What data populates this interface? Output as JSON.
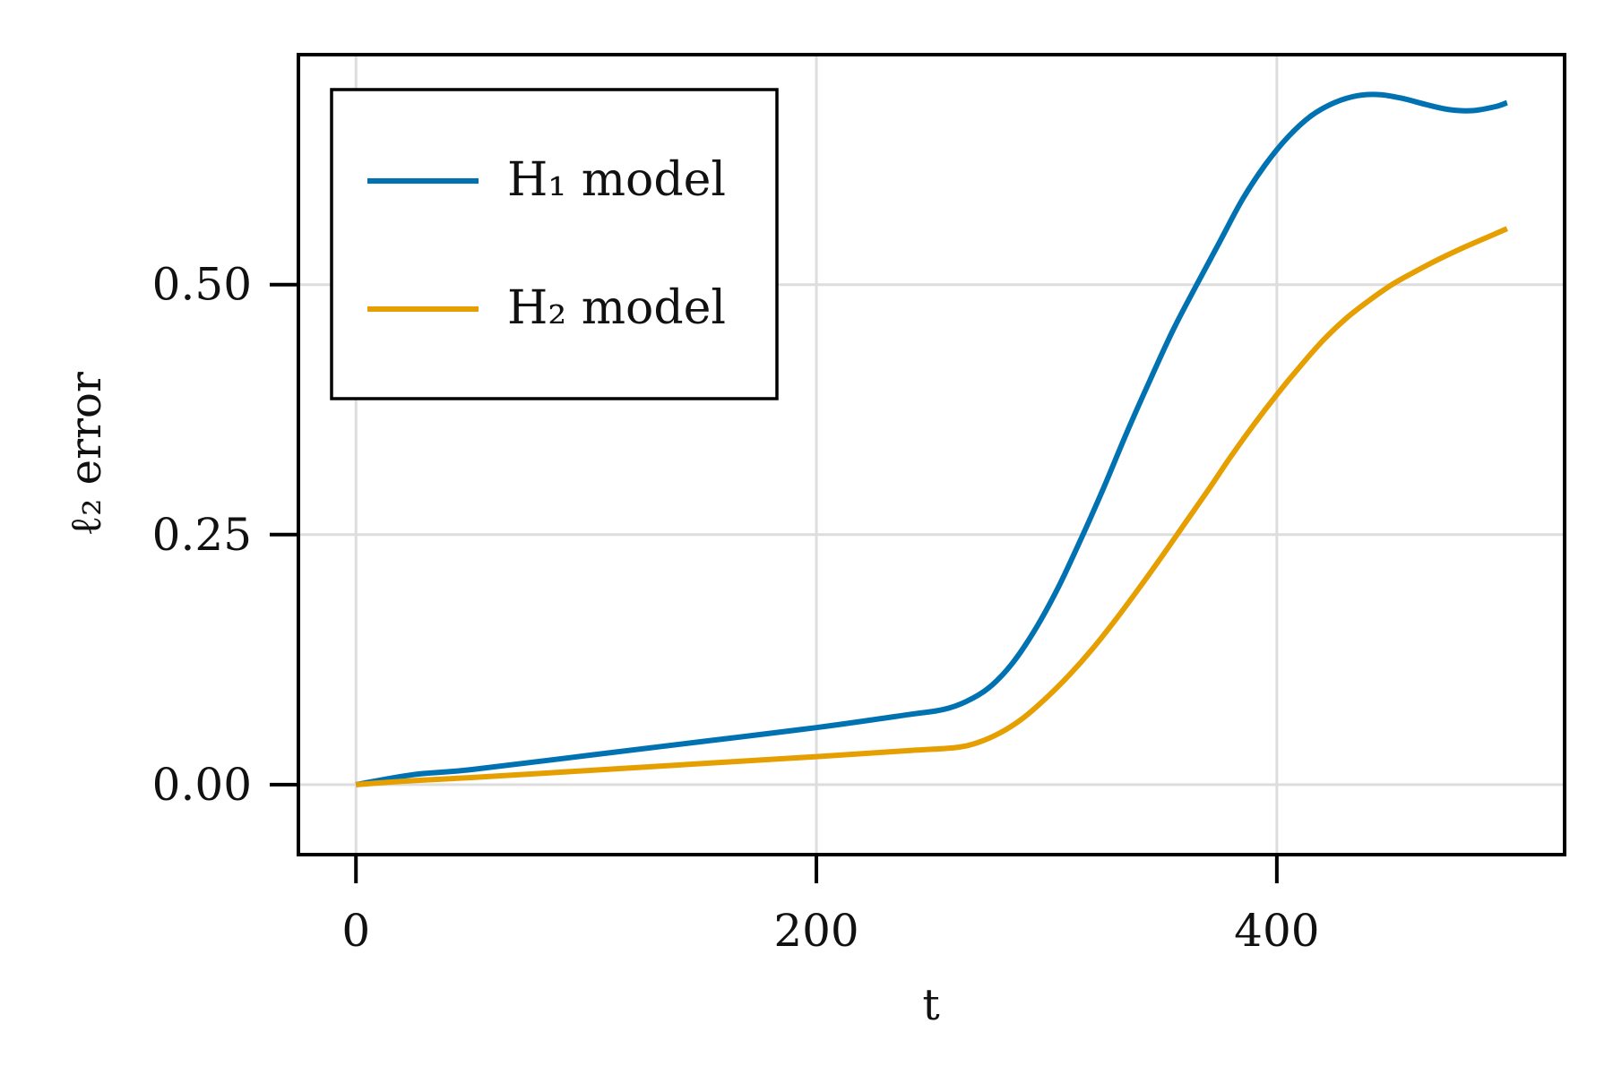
{
  "chart_data": {
    "type": "line",
    "title": "",
    "xlabel": "t",
    "ylabel": "ℓ₂ error",
    "xlim": [
      -25,
      525
    ],
    "ylim": [
      -0.07,
      0.73
    ],
    "xticks": [
      0,
      200,
      400
    ],
    "xtick_labels": [
      "0",
      "200",
      "400"
    ],
    "yticks": [
      0.0,
      0.25,
      0.5
    ],
    "ytick_labels": [
      "0.00",
      "0.25",
      "0.50"
    ],
    "grid": true,
    "legend_position": "top-left",
    "series": [
      {
        "name": "H₁ model",
        "color": "#0072B2",
        "x": [
          0,
          25,
          50,
          100,
          150,
          200,
          240,
          255,
          265,
          275,
          285,
          295,
          305,
          315,
          325,
          335,
          345,
          355,
          365,
          375,
          385,
          395,
          405,
          415,
          425,
          435,
          445,
          455,
          465,
          475,
          485,
          495,
          500
        ],
        "y": [
          0.0,
          0.01,
          0.015,
          0.029,
          0.043,
          0.057,
          0.07,
          0.075,
          0.083,
          0.097,
          0.121,
          0.155,
          0.197,
          0.246,
          0.298,
          0.353,
          0.405,
          0.455,
          0.499,
          0.542,
          0.585,
          0.62,
          0.648,
          0.669,
          0.682,
          0.689,
          0.69,
          0.686,
          0.68,
          0.675,
          0.674,
          0.678,
          0.682
        ]
      },
      {
        "name": "H₂ model",
        "color": "#E69F00",
        "x": [
          0,
          25,
          50,
          100,
          150,
          200,
          240,
          260,
          270,
          280,
          290,
          300,
          310,
          320,
          330,
          340,
          350,
          360,
          370,
          380,
          390,
          400,
          410,
          420,
          430,
          440,
          450,
          460,
          470,
          480,
          490,
          500
        ],
        "y": [
          0.0,
          0.004,
          0.007,
          0.014,
          0.021,
          0.028,
          0.034,
          0.037,
          0.042,
          0.052,
          0.067,
          0.087,
          0.11,
          0.136,
          0.165,
          0.196,
          0.228,
          0.261,
          0.294,
          0.328,
          0.36,
          0.39,
          0.418,
          0.444,
          0.466,
          0.484,
          0.5,
          0.513,
          0.525,
          0.536,
          0.546,
          0.556
        ]
      }
    ]
  }
}
